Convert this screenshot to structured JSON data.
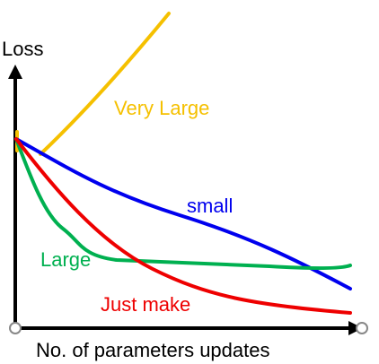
{
  "axes": {
    "y_label": "Loss",
    "x_label": "No. of parameters updates"
  },
  "curves": [
    {
      "label": "Very Large"
    },
    {
      "label": "small"
    },
    {
      "label": "Large"
    },
    {
      "label": "Just make"
    }
  ]
}
